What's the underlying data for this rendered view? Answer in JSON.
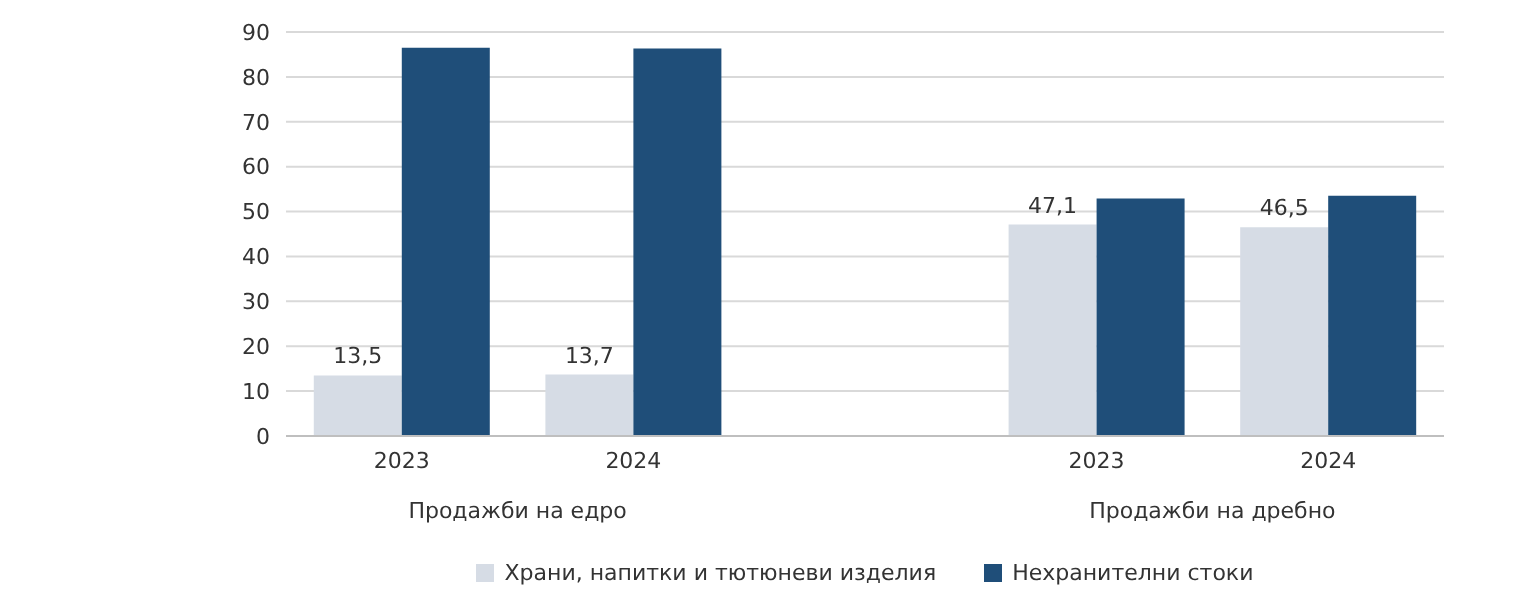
{
  "chart_data": {
    "type": "bar",
    "categories": [
      "2023",
      "2024",
      null,
      "2023",
      "2024"
    ],
    "series": [
      {
        "name": "Храни, напитки и тютюневи изделия",
        "color": "#d6dce5",
        "values": [
          13.5,
          13.7,
          null,
          47.1,
          46.5
        ],
        "value_labels": [
          "13,5",
          "13,7",
          null,
          "47,1",
          "46,5"
        ]
      },
      {
        "name": "Нехранителни стоки",
        "color": "#1f4e79",
        "values": [
          86.5,
          86.3,
          null,
          52.9,
          53.5
        ]
      }
    ],
    "annotations": [
      "Продажби на едро",
      "Продажби на дребно"
    ],
    "ylim": [
      0,
      90
    ],
    "yticks": [
      0,
      10,
      20,
      30,
      40,
      50,
      60,
      70,
      80,
      90
    ],
    "grid": "y",
    "legend": "bottom"
  }
}
